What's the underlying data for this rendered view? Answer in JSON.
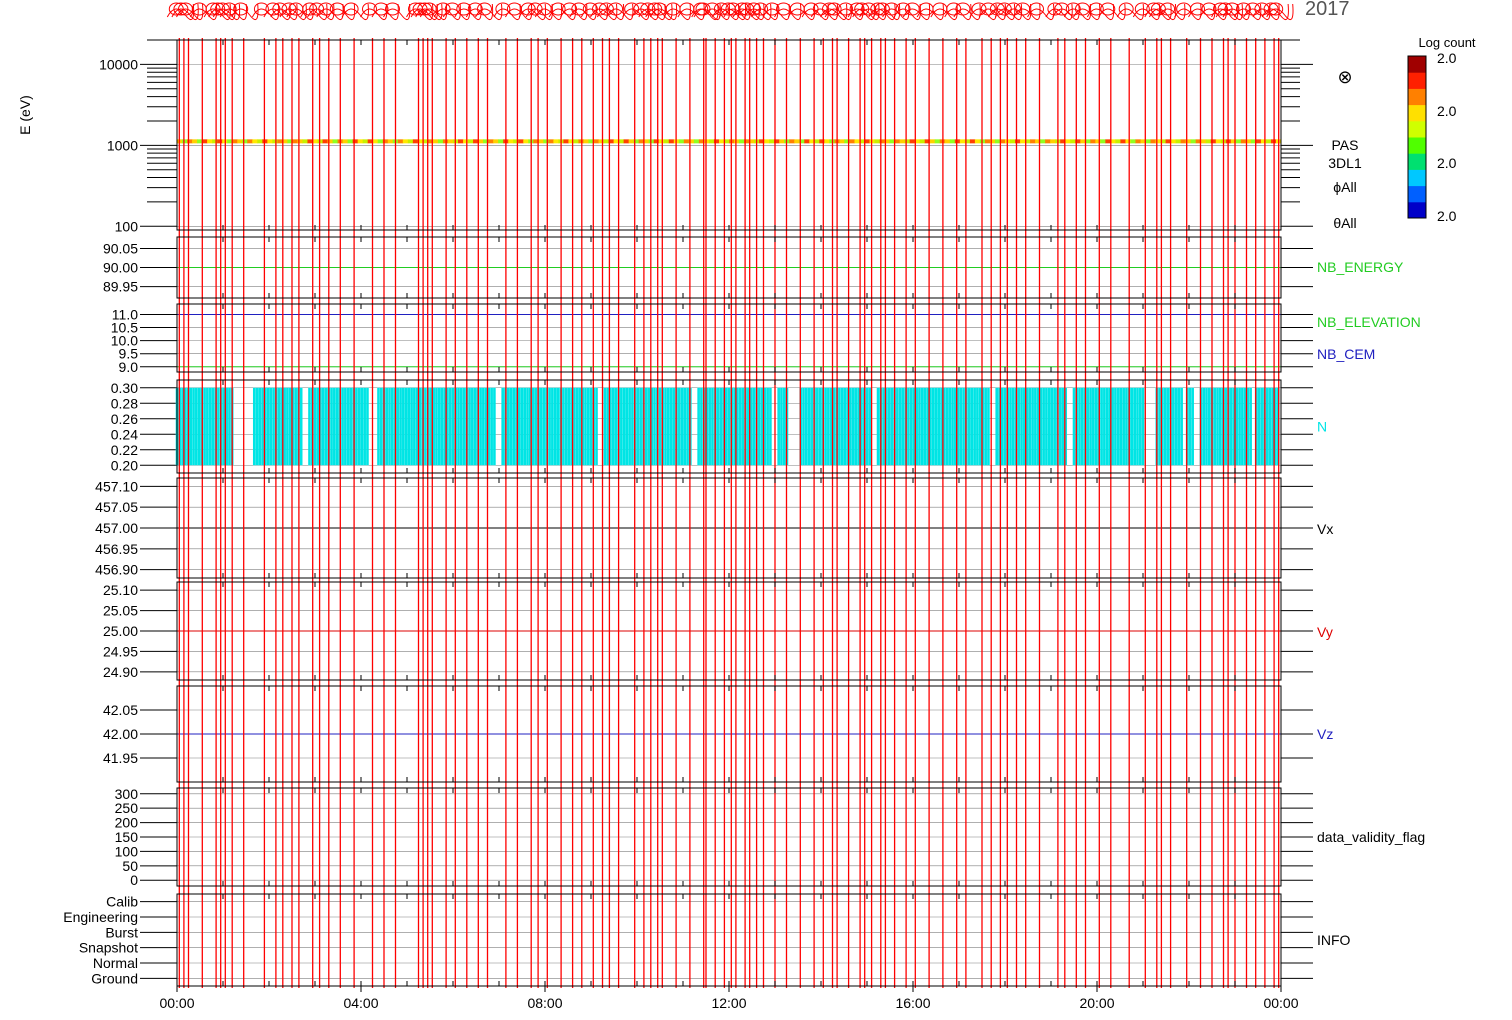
{
  "header": {
    "year_text": "2017",
    "overlay_color": "#ff0000"
  },
  "colorbar": {
    "title": "Log count",
    "tick_labels": [
      "2.0",
      "2.0",
      "2.0",
      "2.0"
    ],
    "colors": [
      "#0000c8",
      "#0060ff",
      "#00c8ff",
      "#00e070",
      "#50ff00",
      "#d0ff00",
      "#ffe000",
      "#ff8000",
      "#ff2000",
      "#a00000"
    ]
  },
  "chart_data": [
    {
      "type": "heatmap",
      "id": "pas_energy",
      "ylabel": "E (eV)",
      "yscale": "log",
      "ylim": [
        90,
        20000
      ],
      "yticks": [
        100,
        1000,
        10000
      ],
      "ytick_labels": [
        "100",
        "1000",
        "10000"
      ],
      "right_labels": [
        "PAS",
        "3DL1",
        "ϕAll",
        "θAll"
      ],
      "band_energy_ev": 1120,
      "band_colors": [
        "#ffd000",
        "#c8f000",
        "#ff8000",
        "#ffe800",
        "#90ff20",
        "#ff4000"
      ],
      "extra_symbol": "⊗"
    },
    {
      "type": "line",
      "id": "nb_energy",
      "ylim": [
        89.92,
        90.08
      ],
      "yticks": [
        89.95,
        90.0,
        90.05
      ],
      "ytick_labels": [
        "89.95",
        "90.00",
        "90.05"
      ],
      "series": [
        {
          "name": "NB_ENERGY",
          "color": "#22cc22",
          "value": 90.0
        }
      ]
    },
    {
      "type": "line",
      "id": "nb_elevation_cem",
      "ylim": [
        8.8,
        11.4
      ],
      "yticks": [
        9.0,
        9.5,
        10.0,
        10.5,
        11.0
      ],
      "ytick_labels": [
        "9.0",
        "9.5",
        "10.0",
        "10.5",
        "11.0"
      ],
      "series": [
        {
          "name": "NB_ELEVATION",
          "color": "#22cc22",
          "value": 9.0
        },
        {
          "name": "NB_CEM",
          "color": "#2020c0",
          "value": 11.0
        }
      ]
    },
    {
      "type": "bar",
      "id": "density",
      "ylim": [
        0.19,
        0.31
      ],
      "yticks": [
        0.2,
        0.22,
        0.24,
        0.26,
        0.28,
        0.3
      ],
      "ytick_labels": [
        "0.20",
        "0.22",
        "0.24",
        "0.26",
        "0.28",
        "0.30"
      ],
      "series": [
        {
          "name": "N",
          "color": "#00e5e5",
          "low": 0.2,
          "high": 0.3
        }
      ],
      "gaps_hours": [
        [
          1.25,
          1.65
        ],
        [
          2.75,
          2.85
        ],
        [
          4.2,
          4.35
        ],
        [
          6.95,
          7.05
        ],
        [
          9.15,
          9.25
        ],
        [
          11.2,
          11.3
        ],
        [
          12.95,
          13.05
        ],
        [
          13.3,
          13.55
        ],
        [
          15.1,
          15.2
        ],
        [
          17.7,
          17.8
        ],
        [
          19.35,
          19.45
        ],
        [
          21.05,
          21.25
        ],
        [
          21.9,
          21.95
        ],
        [
          22.1,
          22.25
        ],
        [
          23.35,
          23.45
        ]
      ]
    },
    {
      "type": "line",
      "id": "vx",
      "ylim": [
        456.88,
        457.12
      ],
      "yticks": [
        456.9,
        456.95,
        457.0,
        457.05,
        457.1
      ],
      "ytick_labels": [
        "456.90",
        "456.95",
        "457.00",
        "457.05",
        "457.10"
      ],
      "series": [
        {
          "name": "Vx",
          "color": "#000000",
          "value": 457.0
        }
      ]
    },
    {
      "type": "line",
      "id": "vy",
      "ylim": [
        24.88,
        25.12
      ],
      "yticks": [
        24.9,
        24.95,
        25.0,
        25.05,
        25.1
      ],
      "ytick_labels": [
        "24.90",
        "24.95",
        "25.00",
        "25.05",
        "25.10"
      ],
      "series": [
        {
          "name": "Vy",
          "color": "#dd0000",
          "value": 25.0
        }
      ]
    },
    {
      "type": "line",
      "id": "vz",
      "ylim": [
        41.9,
        42.1
      ],
      "yticks": [
        41.95,
        42.0,
        42.05
      ],
      "ytick_labels": [
        "41.95",
        "42.00",
        "42.05"
      ],
      "series": [
        {
          "name": "Vz",
          "color": "#2020c0",
          "value": 42.0
        }
      ]
    },
    {
      "type": "line",
      "id": "data_validity",
      "ylim": [
        -20,
        320
      ],
      "yticks": [
        0,
        50,
        100,
        150,
        200,
        250,
        300
      ],
      "ytick_labels": [
        "0",
        "50",
        "100",
        "150",
        "200",
        "250",
        "300"
      ],
      "series": [
        {
          "name": "data_validity_flag",
          "color": "#000000"
        }
      ]
    },
    {
      "type": "line",
      "id": "info",
      "ylim": [
        -0.5,
        5.5
      ],
      "yticks": [
        0,
        1,
        2,
        3,
        4,
        5
      ],
      "ytick_labels": [
        "Ground",
        "Normal",
        "Snapshot",
        "Burst",
        "Engineering",
        "Calib"
      ],
      "series": [
        {
          "name": "INFO",
          "color": "#000000"
        }
      ]
    }
  ],
  "x_axis": {
    "ticks": [
      0,
      4,
      8,
      12,
      16,
      20,
      24
    ],
    "tick_labels": [
      "00:00",
      "04:00",
      "08:00",
      "12:00",
      "16:00",
      "20:00",
      "00:00"
    ]
  },
  "event_lines_hours": [
    0.05,
    0.15,
    0.25,
    0.55,
    0.85,
    0.95,
    1.05,
    1.2,
    1.45,
    1.9,
    2.15,
    2.3,
    2.5,
    2.65,
    2.95,
    3.1,
    3.3,
    3.55,
    3.85,
    4.25,
    4.5,
    4.75,
    5.25,
    5.35,
    5.45,
    5.55,
    5.85,
    6.05,
    6.3,
    6.55,
    6.75,
    7.15,
    7.4,
    7.7,
    7.85,
    8.05,
    8.35,
    8.6,
    8.8,
    9.05,
    9.25,
    9.4,
    9.6,
    9.95,
    10.15,
    10.3,
    10.45,
    10.55,
    10.85,
    11.15,
    11.45,
    11.5,
    11.7,
    11.9,
    12.05,
    12.15,
    12.35,
    12.45,
    12.6,
    12.75,
    13.0,
    13.25,
    13.55,
    13.85,
    14.05,
    14.25,
    14.35,
    14.6,
    14.85,
    14.95,
    15.1,
    15.3,
    15.4,
    15.6,
    15.85,
    16.05,
    16.35,
    16.65,
    16.95,
    17.15,
    17.5,
    17.7,
    17.9,
    18.05,
    18.25,
    18.45,
    18.75,
    19.15,
    19.3,
    19.55,
    19.75,
    20.05,
    20.3,
    20.7,
    21.05,
    21.3,
    21.4,
    21.6,
    21.95,
    22.25,
    22.5,
    22.75,
    22.85,
    23.0,
    23.25,
    23.45,
    23.65,
    23.85,
    23.95
  ]
}
